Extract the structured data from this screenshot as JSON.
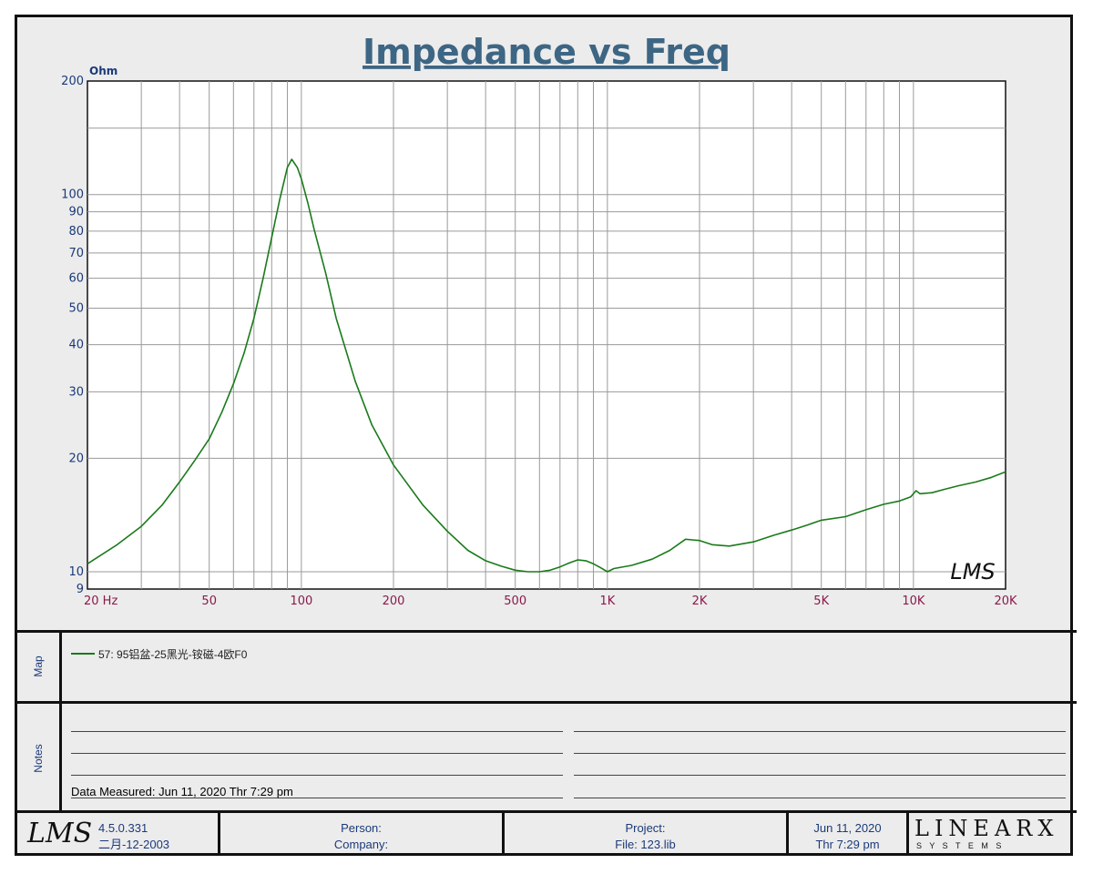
{
  "chart_data": {
    "type": "line",
    "title": "Impedance vs Freq",
    "ylabel": "Ohm",
    "xlabel": "",
    "xscale": "log",
    "yscale": "log",
    "xlim": [
      20,
      20000
    ],
    "ylim": [
      9,
      200
    ],
    "x_ticks": [
      {
        "value": 20,
        "label": "20  Hz"
      },
      {
        "value": 50,
        "label": "50"
      },
      {
        "value": 100,
        "label": "100"
      },
      {
        "value": 200,
        "label": "200"
      },
      {
        "value": 500,
        "label": "500"
      },
      {
        "value": 1000,
        "label": "1K"
      },
      {
        "value": 2000,
        "label": "2K"
      },
      {
        "value": 5000,
        "label": "5K"
      },
      {
        "value": 10000,
        "label": "10K"
      },
      {
        "value": 20000,
        "label": "20K"
      }
    ],
    "y_ticks": [
      {
        "value": 200,
        "label": "200"
      },
      {
        "value": 100,
        "label": "100"
      },
      {
        "value": 90,
        "label": "90"
      },
      {
        "value": 80,
        "label": "80"
      },
      {
        "value": 70,
        "label": "70"
      },
      {
        "value": 60,
        "label": "60"
      },
      {
        "value": 50,
        "label": "50"
      },
      {
        "value": 40,
        "label": "40"
      },
      {
        "value": 30,
        "label": "30"
      },
      {
        "value": 20,
        "label": "20"
      },
      {
        "value": 10,
        "label": "10"
      },
      {
        "value": 9,
        "label": "9"
      }
    ],
    "grid": true,
    "watermark": "LMS",
    "series": [
      {
        "name": "57: 95铝盆-25黑光-铵磁-4欧F0",
        "color": "#1a7a1a",
        "points": [
          [
            20,
            10.5
          ],
          [
            25,
            11.8
          ],
          [
            30,
            13.2
          ],
          [
            35,
            15.0
          ],
          [
            40,
            17.3
          ],
          [
            45,
            19.8
          ],
          [
            50,
            22.5
          ],
          [
            55,
            26.5
          ],
          [
            60,
            31.5
          ],
          [
            65,
            38.0
          ],
          [
            70,
            47.0
          ],
          [
            75,
            60.0
          ],
          [
            80,
            77.0
          ],
          [
            85,
            97.0
          ],
          [
            90,
            118.0
          ],
          [
            93,
            124.0
          ],
          [
            97,
            118.0
          ],
          [
            100,
            110.0
          ],
          [
            105,
            95.0
          ],
          [
            110,
            81.0
          ],
          [
            120,
            62.0
          ],
          [
            130,
            47.0
          ],
          [
            140,
            38.5
          ],
          [
            150,
            32.0
          ],
          [
            170,
            24.5
          ],
          [
            200,
            19.2
          ],
          [
            250,
            15.0
          ],
          [
            300,
            12.8
          ],
          [
            350,
            11.4
          ],
          [
            400,
            10.7
          ],
          [
            450,
            10.35
          ],
          [
            500,
            10.1
          ],
          [
            550,
            10.0
          ],
          [
            600,
            10.0
          ],
          [
            650,
            10.1
          ],
          [
            700,
            10.3
          ],
          [
            750,
            10.55
          ],
          [
            800,
            10.75
          ],
          [
            850,
            10.7
          ],
          [
            900,
            10.5
          ],
          [
            950,
            10.25
          ],
          [
            1000,
            10.0
          ],
          [
            1050,
            10.2
          ],
          [
            1200,
            10.4
          ],
          [
            1400,
            10.8
          ],
          [
            1600,
            11.4
          ],
          [
            1800,
            12.2
          ],
          [
            2000,
            12.1
          ],
          [
            2200,
            11.8
          ],
          [
            2500,
            11.7
          ],
          [
            3000,
            12.0
          ],
          [
            3500,
            12.5
          ],
          [
            4000,
            12.9
          ],
          [
            4500,
            13.3
          ],
          [
            5000,
            13.7
          ],
          [
            6000,
            14.0
          ],
          [
            7000,
            14.6
          ],
          [
            8000,
            15.1
          ],
          [
            9000,
            15.4
          ],
          [
            9800,
            15.8
          ],
          [
            10200,
            16.4
          ],
          [
            10500,
            16.1
          ],
          [
            11500,
            16.2
          ],
          [
            12500,
            16.5
          ],
          [
            14000,
            16.9
          ],
          [
            16000,
            17.3
          ],
          [
            18000,
            17.8
          ],
          [
            20000,
            18.4
          ]
        ]
      }
    ]
  },
  "map": {
    "label": "Map",
    "legend_text": "57: 95铝盆-25黑光-铵磁-4欧F0",
    "legend_color": "#1a7a1a"
  },
  "notes": {
    "label": "Notes",
    "data_measured": "Data Measured: Jun 11, 2020  Thr  7:29 pm"
  },
  "footer": {
    "logo": "LMS",
    "version": "4.5.0.331",
    "build_date": "二月-12-2003",
    "person_label": "Person:",
    "company_label": "Company:",
    "project_label": "Project:",
    "file_label": "File: 123.lib",
    "date": "Jun 11, 2020",
    "time": "Thr  7:29 pm",
    "brand": "LINEARX",
    "brand_sub": "S Y S T E M S"
  }
}
